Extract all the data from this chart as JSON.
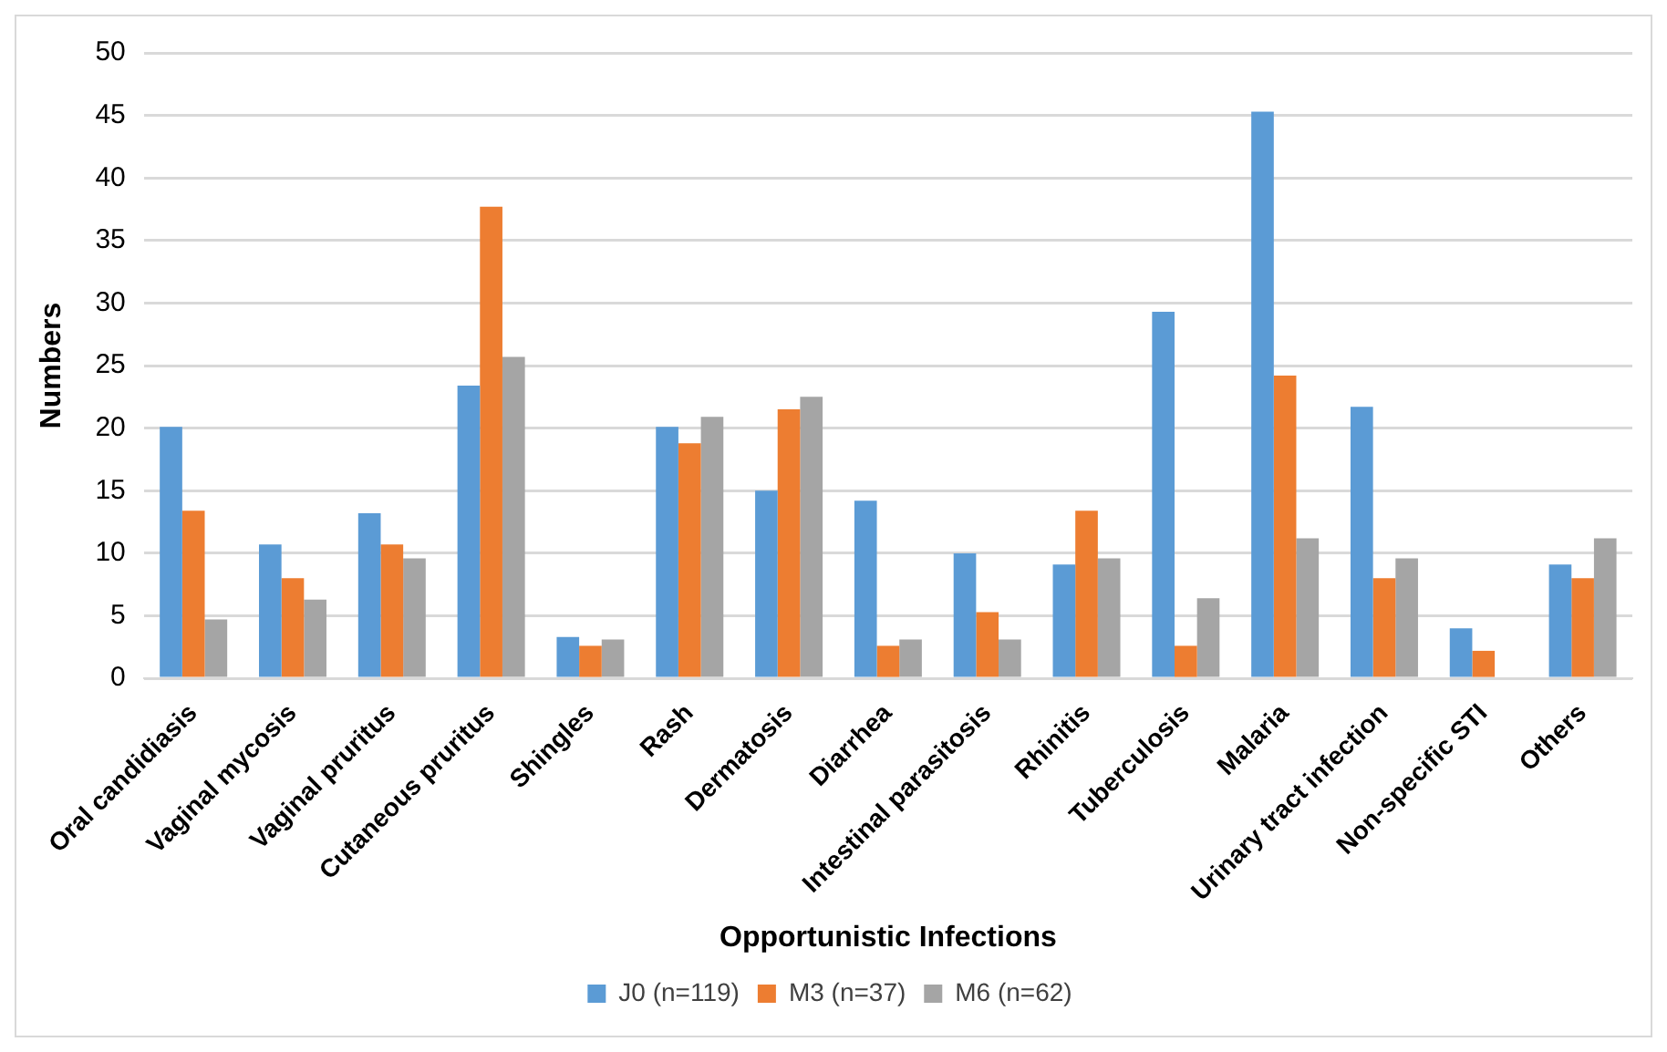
{
  "chart_data": {
    "type": "bar",
    "xlabel": "Opportunistic Infections",
    "ylabel": "Numbers",
    "categories": [
      "Oral candidiasis",
      "Vaginal mycosis",
      "Vaginal pruritus",
      "Cutaneous pruritus",
      "Shingles",
      "Rash",
      "Dermatosis",
      "Diarrhea",
      "Intestinal parasitosis",
      "Rhinitis",
      "Tuberculosis",
      "Malaria",
      "Urinary tract infection",
      "Non-specific STI",
      "Others"
    ],
    "series": [
      {
        "name": "J0 (n=119)",
        "color": "#5b9bd5",
        "values": [
          20.1,
          10.7,
          13.2,
          23.4,
          3.3,
          20.1,
          15.0,
          14.2,
          10.0,
          9.1,
          29.3,
          45.3,
          21.7,
          4.0,
          9.1
        ]
      },
      {
        "name": "M3 (n=37)",
        "color": "#ed7d31",
        "values": [
          13.4,
          8.0,
          10.7,
          37.7,
          2.6,
          18.8,
          21.5,
          2.6,
          5.3,
          13.4,
          2.6,
          24.2,
          8.0,
          2.2,
          8.0
        ]
      },
      {
        "name": "M6 (n=62)",
        "color": "#a5a5a5",
        "values": [
          4.7,
          6.3,
          9.6,
          25.7,
          3.1,
          20.9,
          22.5,
          3.1,
          3.1,
          9.6,
          6.4,
          11.2,
          9.6,
          0,
          11.2
        ]
      }
    ],
    "ylim": [
      0,
      50
    ],
    "yticks": [
      0,
      5,
      10,
      15,
      20,
      25,
      30,
      35,
      40,
      45,
      50
    ],
    "grid": "y",
    "legend": "bottom"
  }
}
